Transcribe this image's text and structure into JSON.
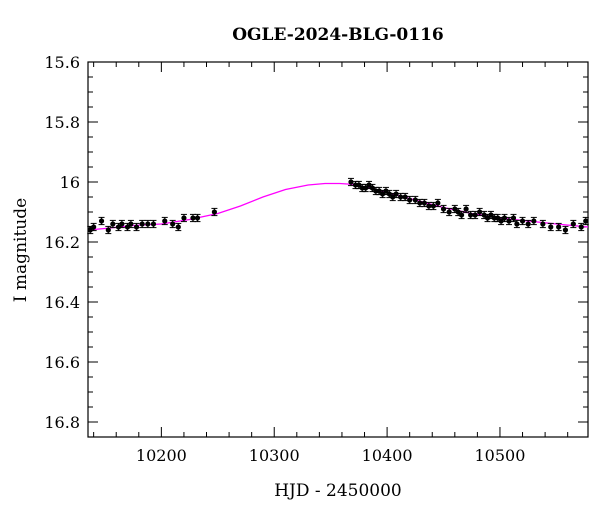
{
  "chart_data": {
    "type": "scatter",
    "title": "OGLE-2024-BLG-0116",
    "xlabel": "HJD - 2450000",
    "ylabel": "I magnitude",
    "xlim": [
      10135,
      10578
    ],
    "ylim": [
      16.85,
      15.6
    ],
    "y_inverted": true,
    "grid": false,
    "x_ticks": [
      10200,
      10300,
      10400,
      10500
    ],
    "x_tick_labels": [
      "10200",
      "10300",
      "10400",
      "10500"
    ],
    "y_ticks": [
      15.6,
      15.8,
      16.0,
      16.2,
      16.4,
      16.6,
      16.8
    ],
    "y_tick_labels": [
      "15.6",
      "15.8",
      "16",
      "16.2",
      "16.4",
      "16.6",
      "16.8"
    ],
    "point_color": "#000000",
    "model_color": "#ff00ff",
    "series": [
      {
        "type": "scatter",
        "error_bars": true,
        "x": [
          10137,
          10140,
          10147,
          10153,
          10157,
          10162,
          10165,
          10170,
          10173,
          10178,
          10183,
          10188,
          10193,
          10203,
          10210,
          10215,
          10220,
          10228,
          10232,
          10247,
          10368,
          10372,
          10375,
          10378,
          10381,
          10384,
          10387,
          10390,
          10393,
          10396,
          10399,
          10402,
          10405,
          10408,
          10412,
          10416,
          10420,
          10425,
          10429,
          10433,
          10437,
          10441,
          10445,
          10450,
          10455,
          10460,
          10463,
          10466,
          10470,
          10474,
          10478,
          10482,
          10486,
          10489,
          10492,
          10495,
          10498,
          10501,
          10504,
          10508,
          10512,
          10515,
          10520,
          10525,
          10530,
          10538,
          10545,
          10552,
          10558,
          10565,
          10572,
          10576
        ],
        "y": [
          16.16,
          16.15,
          16.13,
          16.16,
          16.14,
          16.15,
          16.14,
          16.15,
          16.14,
          16.15,
          16.14,
          16.14,
          16.14,
          16.13,
          16.14,
          16.15,
          16.12,
          16.12,
          16.12,
          16.1,
          16.0,
          16.01,
          16.01,
          16.02,
          16.02,
          16.01,
          16.02,
          16.03,
          16.03,
          16.04,
          16.03,
          16.04,
          16.05,
          16.04,
          16.05,
          16.05,
          16.06,
          16.06,
          16.07,
          16.07,
          16.08,
          16.08,
          16.07,
          16.09,
          16.1,
          16.09,
          16.1,
          16.11,
          16.09,
          16.11,
          16.11,
          16.1,
          16.11,
          16.12,
          16.11,
          16.12,
          16.12,
          16.13,
          16.12,
          16.13,
          16.12,
          16.14,
          16.13,
          16.14,
          16.13,
          16.14,
          16.15,
          16.15,
          16.16,
          16.14,
          16.15,
          16.13
        ],
        "yerr": 0.012
      },
      {
        "type": "line",
        "x": [
          10135,
          10150,
          10175,
          10200,
          10225,
          10250,
          10270,
          10290,
          10310,
          10330,
          10345,
          10358,
          10370,
          10385,
          10400,
          10425,
          10450,
          10475,
          10500,
          10525,
          10550,
          10578
        ],
        "y": [
          16.16,
          16.155,
          16.145,
          16.14,
          16.125,
          16.105,
          16.08,
          16.05,
          16.025,
          16.01,
          16.005,
          16.005,
          16.008,
          16.02,
          16.035,
          16.06,
          16.085,
          16.105,
          16.12,
          16.13,
          16.14,
          16.15
        ]
      }
    ]
  }
}
